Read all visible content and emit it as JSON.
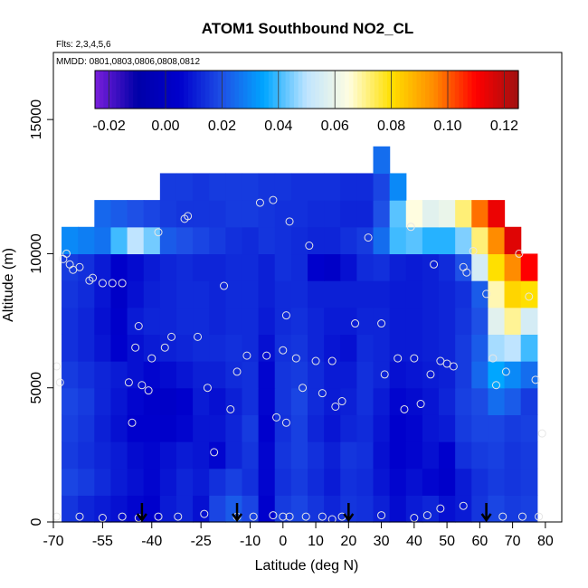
{
  "chart_data": {
    "type": "heatmap",
    "title": "ATOM1 Southbound NO2_CL",
    "flights_note": "Flts: 2,3,4,5,6",
    "dates_note": "MMDD: 0801,0803,0806,0808,0812",
    "xlabel": "Latitude (deg N)",
    "ylabel": "Altitude (m)",
    "xlim": [
      -70,
      85
    ],
    "ylim": [
      0,
      17500
    ],
    "x_ticks": [
      -70,
      -55,
      -40,
      -25,
      -10,
      0,
      10,
      20,
      30,
      40,
      50,
      60,
      70,
      80
    ],
    "x_tick_labels": [
      "-70",
      "-55",
      "-40",
      "-25",
      "-10",
      "0",
      "10",
      "20",
      "30",
      "40",
      "50",
      "60",
      "70",
      "80"
    ],
    "y_ticks": [
      0,
      5000,
      10000,
      15000
    ],
    "y_tick_labels": [
      "0",
      "5000",
      "10000",
      "15000"
    ],
    "colorbar": {
      "min": -0.025,
      "max": 0.125,
      "ticks": [
        -0.02,
        0.0,
        0.02,
        0.04,
        0.06,
        0.08,
        0.1,
        0.12
      ],
      "tick_labels": [
        "-0.02",
        "0.00",
        "0.02",
        "0.04",
        "0.06",
        "0.08",
        "0.10",
        "0.12"
      ],
      "colors": [
        "#7a1fdc",
        "#0000a8",
        "#0000cc",
        "#1e50e6",
        "#00a6ff",
        "#bfe4ff",
        "#fffde0",
        "#ffe000",
        "#ff8c00",
        "#ff0000",
        "#a01010"
      ]
    },
    "arrows_lat": [
      -43,
      -14,
      20,
      62
    ],
    "grid_lat": [
      -65,
      -60,
      -55,
      -50,
      -45,
      -40,
      -35,
      -30,
      -25,
      -20,
      -15,
      -10,
      -5,
      0,
      5,
      10,
      15,
      20,
      25,
      30,
      35,
      40,
      45,
      50,
      55,
      60,
      65,
      70,
      75
    ],
    "grid_alt": [
      500,
      1500,
      2500,
      3500,
      4500,
      5500,
      6500,
      7500,
      8500,
      9500,
      10500,
      11500,
      12500,
      13500
    ],
    "grid_values": [
      [
        0.015,
        0.012,
        0.01,
        0.008,
        0.006,
        0.005,
        0.01,
        0.012,
        0.008,
        0.018,
        0.022,
        0.018,
        0.005,
        0.016,
        0.018,
        0.015,
        0.012,
        0.015,
        0.014,
        0.011,
        0.007,
        0.01,
        0.012,
        0.008,
        0.01,
        0.015,
        0.018,
        0.016,
        0.017
      ],
      [
        0.018,
        0.016,
        0.013,
        0.01,
        0.008,
        0.006,
        0.009,
        0.012,
        0.01,
        0.014,
        0.017,
        0.014,
        0.006,
        0.014,
        0.016,
        0.013,
        0.01,
        0.014,
        0.013,
        0.009,
        0.006,
        0.008,
        0.006,
        0.004,
        0.01,
        0.014,
        0.016,
        0.015,
        0.016
      ],
      [
        0.016,
        0.014,
        0.012,
        0.01,
        0.007,
        0.006,
        0.008,
        0.01,
        0.009,
        0.006,
        0.012,
        0.015,
        0.006,
        0.015,
        0.017,
        0.014,
        0.011,
        0.015,
        0.014,
        0.008,
        0.005,
        0.006,
        0.008,
        0.005,
        0.014,
        0.016,
        0.017,
        0.015,
        0.016
      ],
      [
        0.017,
        0.015,
        0.011,
        0.008,
        0.005,
        0.005,
        0.004,
        0.006,
        0.009,
        0.009,
        0.012,
        0.016,
        0.005,
        0.014,
        0.017,
        0.012,
        0.009,
        0.012,
        0.013,
        0.009,
        0.005,
        0.006,
        0.009,
        0.01,
        0.016,
        0.018,
        0.018,
        0.016,
        0.017
      ],
      [
        0.018,
        0.016,
        0.012,
        0.009,
        0.006,
        0.004,
        0.003,
        0.005,
        0.01,
        0.008,
        0.011,
        0.014,
        0.006,
        0.015,
        0.018,
        0.013,
        0.01,
        0.011,
        0.014,
        0.01,
        0.006,
        0.007,
        0.009,
        0.012,
        0.017,
        0.019,
        0.025,
        0.022,
        0.016
      ],
      [
        0.016,
        0.014,
        0.012,
        0.01,
        0.008,
        0.006,
        0.007,
        0.009,
        0.011,
        0.011,
        0.013,
        0.014,
        0.006,
        0.015,
        0.016,
        0.013,
        0.01,
        0.01,
        0.014,
        0.012,
        0.008,
        0.009,
        0.01,
        0.011,
        0.016,
        0.024,
        0.035,
        0.03,
        0.025
      ],
      [
        0.014,
        0.012,
        0.009,
        0.005,
        0.008,
        0.01,
        0.011,
        0.012,
        0.013,
        0.013,
        0.014,
        0.013,
        0.008,
        0.014,
        0.015,
        0.012,
        0.009,
        0.008,
        0.013,
        0.012,
        0.01,
        0.01,
        0.011,
        0.012,
        0.016,
        0.022,
        0.048,
        0.05,
        0.04
      ],
      [
        0.014,
        0.012,
        0.008,
        0.004,
        0.01,
        0.012,
        0.012,
        0.013,
        0.013,
        0.012,
        0.013,
        0.013,
        0.01,
        0.013,
        0.014,
        0.012,
        0.01,
        0.01,
        0.012,
        0.012,
        0.01,
        0.01,
        0.011,
        0.012,
        0.015,
        0.02,
        0.058,
        0.07,
        0.055
      ],
      [
        0.015,
        0.013,
        0.009,
        0.003,
        0.008,
        0.011,
        0.012,
        0.013,
        0.013,
        0.012,
        0.013,
        0.013,
        0.011,
        0.013,
        0.013,
        0.011,
        0.011,
        0.011,
        0.011,
        0.011,
        0.01,
        0.01,
        0.011,
        0.012,
        0.014,
        0.022,
        0.068,
        0.082,
        0.08
      ],
      [
        0.016,
        0.014,
        0.01,
        0.004,
        0.007,
        0.01,
        0.012,
        0.013,
        0.012,
        0.012,
        0.013,
        0.013,
        0.011,
        0.014,
        0.013,
        0.005,
        0.003,
        0.008,
        0.013,
        0.014,
        0.011,
        0.01,
        0.011,
        0.013,
        0.02,
        0.055,
        0.08,
        0.095,
        0.11
      ],
      [
        0.03,
        0.028,
        0.026,
        0.04,
        0.05,
        0.044,
        0.022,
        0.02,
        0.018,
        0.016,
        0.014,
        0.013,
        0.015,
        0.014,
        0.013,
        0.012,
        0.012,
        0.014,
        0.016,
        0.025,
        0.04,
        0.042,
        0.038,
        0.038,
        0.045,
        0.072,
        0.095,
        0.115,
        null
      ],
      [
        null,
        null,
        0.024,
        0.022,
        0.02,
        0.018,
        0.016,
        0.015,
        0.015,
        0.015,
        0.016,
        0.016,
        0.015,
        0.014,
        0.014,
        0.013,
        0.013,
        0.012,
        0.012,
        0.02,
        0.042,
        0.065,
        0.058,
        0.06,
        0.072,
        0.098,
        0.113,
        null,
        null
      ],
      [
        null,
        null,
        null,
        null,
        null,
        null,
        0.016,
        0.016,
        0.015,
        0.016,
        0.016,
        0.016,
        0.015,
        0.015,
        0.014,
        0.014,
        0.014,
        0.013,
        0.013,
        0.018,
        0.03,
        null,
        null,
        null,
        null,
        null,
        null,
        null,
        null
      ],
      [
        null,
        null,
        null,
        null,
        null,
        null,
        null,
        null,
        null,
        null,
        null,
        null,
        null,
        null,
        null,
        null,
        null,
        null,
        null,
        0.025,
        null,
        null,
        null,
        null,
        null,
        null,
        null,
        null,
        null
      ]
    ],
    "grid": "off",
    "legend": "top colorbar",
    "points": [
      [
        -69,
        5800
      ],
      [
        -68,
        5200
      ],
      [
        -67,
        9800
      ],
      [
        -66,
        10000
      ],
      [
        -65,
        9600
      ],
      [
        -64,
        9400
      ],
      [
        -62,
        9500
      ],
      [
        -59,
        9000
      ],
      [
        -58,
        9100
      ],
      [
        -55,
        8900
      ],
      [
        -52,
        8900
      ],
      [
        -49,
        8900
      ],
      [
        -47,
        5200
      ],
      [
        -46,
        3700
      ],
      [
        -45,
        6500
      ],
      [
        -44,
        7300
      ],
      [
        -43,
        5100
      ],
      [
        -41,
        4900
      ],
      [
        -40,
        6100
      ],
      [
        -38,
        10800
      ],
      [
        -36,
        6500
      ],
      [
        -34,
        6900
      ],
      [
        -30,
        11300
      ],
      [
        -29,
        11400
      ],
      [
        -26,
        6900
      ],
      [
        -23,
        5000
      ],
      [
        -21,
        2600
      ],
      [
        -18,
        8800
      ],
      [
        -16,
        4200
      ],
      [
        -14,
        5600
      ],
      [
        -11,
        6200
      ],
      [
        -7,
        11900
      ],
      [
        -5,
        6200
      ],
      [
        -3,
        12000
      ],
      [
        -2,
        3900
      ],
      [
        0,
        6400
      ],
      [
        1,
        7700
      ],
      [
        1,
        3700
      ],
      [
        2,
        11200
      ],
      [
        4,
        6100
      ],
      [
        6,
        5000
      ],
      [
        8,
        10300
      ],
      [
        10,
        6000
      ],
      [
        12,
        4800
      ],
      [
        15,
        6000
      ],
      [
        16,
        4300
      ],
      [
        18,
        4500
      ],
      [
        22,
        7400
      ],
      [
        26,
        10600
      ],
      [
        30,
        7400
      ],
      [
        31,
        5500
      ],
      [
        35,
        6100
      ],
      [
        37,
        4200
      ],
      [
        39,
        11000
      ],
      [
        40,
        6100
      ],
      [
        42,
        4400
      ],
      [
        45,
        5500
      ],
      [
        46,
        9600
      ],
      [
        48,
        6000
      ],
      [
        50,
        5900
      ],
      [
        52,
        5800
      ],
      [
        55,
        9500
      ],
      [
        56,
        9300
      ],
      [
        58,
        10100
      ],
      [
        62,
        8500
      ],
      [
        64,
        6100
      ],
      [
        65,
        5100
      ],
      [
        68,
        5600
      ],
      [
        72,
        10000
      ],
      [
        75,
        8400
      ],
      [
        77,
        5300
      ],
      [
        79,
        3300
      ],
      [
        -69,
        200
      ],
      [
        -62,
        200
      ],
      [
        -55,
        150
      ],
      [
        -49,
        200
      ],
      [
        -44,
        150
      ],
      [
        -38,
        200
      ],
      [
        -32,
        200
      ],
      [
        -24,
        300
      ],
      [
        -14,
        200
      ],
      [
        -9,
        200
      ],
      [
        -3,
        250
      ],
      [
        0,
        200
      ],
      [
        2,
        200
      ],
      [
        7,
        200
      ],
      [
        12,
        200
      ],
      [
        15,
        100
      ],
      [
        18,
        200
      ],
      [
        30,
        250
      ],
      [
        40,
        150
      ],
      [
        44,
        250
      ],
      [
        48,
        500
      ],
      [
        55,
        600
      ],
      [
        67,
        200
      ],
      [
        73,
        200
      ],
      [
        78,
        200
      ]
    ]
  }
}
